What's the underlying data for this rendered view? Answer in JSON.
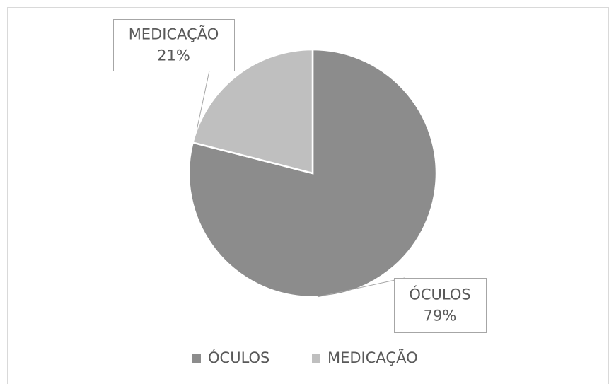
{
  "chart_data": {
    "type": "pie",
    "categories": [
      "ÓCULOS",
      "MEDICAÇÃO"
    ],
    "values": [
      79,
      21
    ],
    "value_labels": [
      "79%",
      "21%"
    ],
    "colors": [
      "#8c8c8c",
      "#bfbfbf"
    ],
    "legend": "bottom"
  }
}
